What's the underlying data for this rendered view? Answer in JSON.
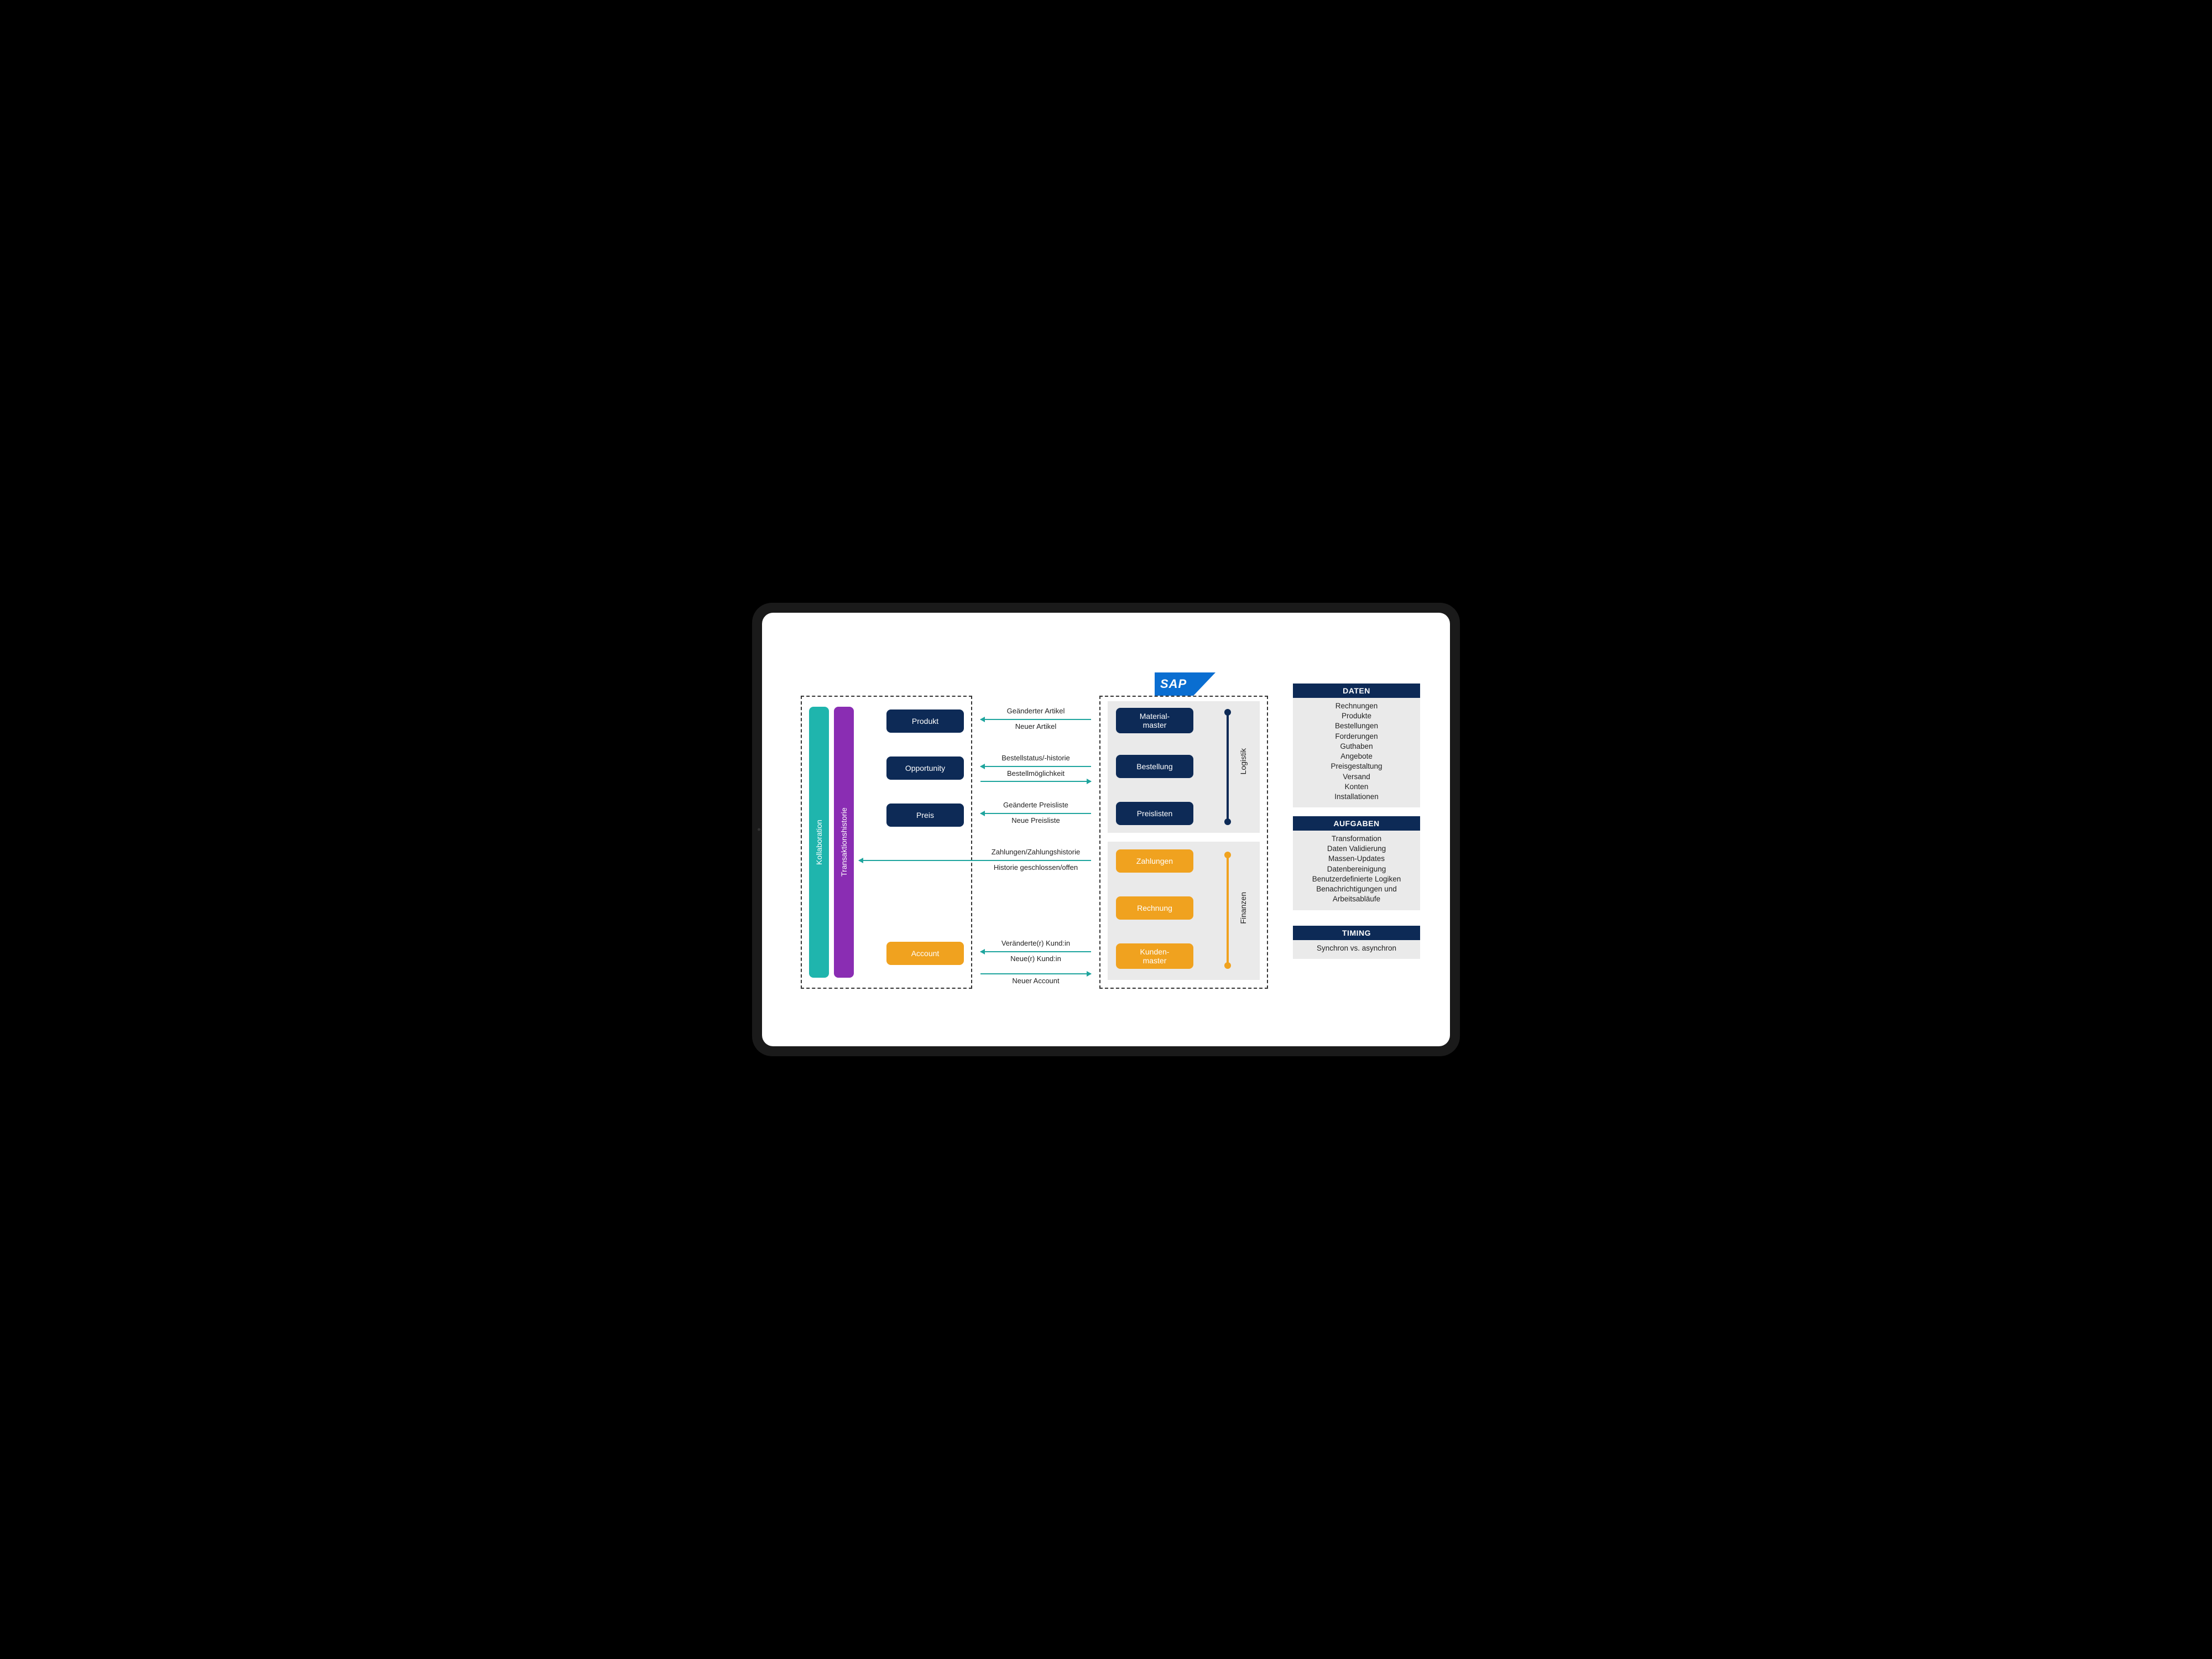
{
  "colors": {
    "navy": "#0d2a56",
    "teal": "#1fb5ad",
    "purple": "#8a2db3",
    "orange": "#f0a21f",
    "panel_head": "#0d2a56",
    "arrow": "#1fa59e",
    "sap_blue": "#0a6ed1",
    "grey": "#eaeaea"
  },
  "left": {
    "vbar1": "Kollaboration",
    "vbar2": "Transaktionshistorie",
    "items": [
      "Produkt",
      "Opportunity",
      "Preis",
      "Account"
    ]
  },
  "flows": [
    {
      "top": "Geänderter Artikel",
      "bottom": "Neuer Artikel",
      "dir_top": "left",
      "dir_bottom": "left"
    },
    {
      "top": "Bestellstatus/-historie",
      "bottom": "Bestellmöglichkeit",
      "dir_top": "left",
      "dir_bottom": "right"
    },
    {
      "top": "Geänderte Preisliste",
      "bottom": "Neue Preisliste",
      "dir_top": "left",
      "dir_bottom": "left"
    },
    {
      "top": "Zahlungen/Zahlungshistorie",
      "bottom": "Historie geschlossen/offen",
      "dir_top": "left",
      "dir_bottom": "left",
      "long": true
    },
    {
      "top": "Veränderte(r) Kund:in",
      "bottom": "Neue(r) Kund:in",
      "dir_top": "left",
      "dir_bottom": "left"
    },
    {
      "top": "Neuer Account",
      "bottom": "",
      "dir_top": "right",
      "single": true
    }
  ],
  "sap": {
    "logo": "SAP",
    "group1_label": "Logistik",
    "group1_items": [
      "Material-\nmaster",
      "Bestellung",
      "Preislisten"
    ],
    "group2_label": "Finanzen",
    "group2_items": [
      "Zahlungen",
      "Rechnung",
      "Kunden-\nmaster"
    ]
  },
  "panels": {
    "daten": {
      "title": "DATEN",
      "items": [
        "Rechnungen",
        "Produkte",
        "Bestellungen",
        "Forderungen",
        "Guthaben",
        "Angebote",
        "Preisgestaltung",
        "Versand",
        "Konten",
        "Installationen"
      ]
    },
    "aufgaben": {
      "title": "AUFGABEN",
      "items": [
        "Transformation",
        "Daten Validierung",
        "Massen-Updates",
        "Datenbereinigung",
        "Benutzerdefinierte Logiken",
        "Benachrichtigungen und Arbeitsabläufe"
      ]
    },
    "timing": {
      "title": "TIMING",
      "items": [
        "Synchron vs. asynchron"
      ]
    }
  }
}
